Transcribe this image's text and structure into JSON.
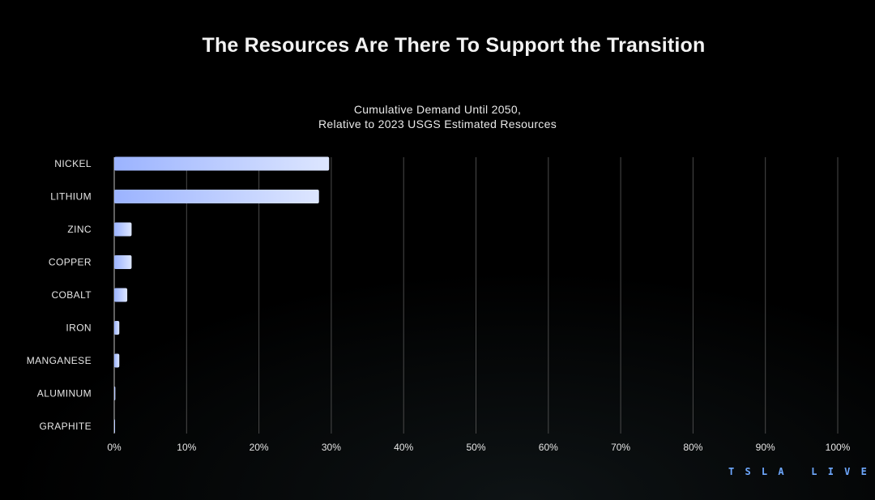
{
  "header": {
    "title": "The Resources Are There To Support the Transition"
  },
  "chart_data": {
    "type": "bar",
    "orientation": "horizontal",
    "title": "Cumulative Demand Until 2050,",
    "subtitle": "Relative to 2023 USGS Estimated Resources",
    "categories": [
      "NICKEL",
      "LITHIUM",
      "ZINC",
      "COPPER",
      "COBALT",
      "IRON",
      "MANGANESE",
      "ALUMINUM",
      "GRAPHITE"
    ],
    "values": [
      29.7,
      28.3,
      2.4,
      2.4,
      1.8,
      0.7,
      0.7,
      0.15,
      0.1
    ],
    "unit": "%",
    "xlim": [
      0,
      100
    ],
    "xticks": [
      "0%",
      "10%",
      "20%",
      "30%",
      "40%",
      "50%",
      "60%",
      "70%",
      "80%",
      "90%",
      "100%"
    ],
    "xlabel": "",
    "ylabel": "",
    "grid": true,
    "colors": {
      "bar_start": "#9bb3ff",
      "bar_end": "#dde6ff",
      "grid": "#4a4a4a",
      "axis": "#bfbfbf"
    }
  },
  "branding": {
    "logo_text": "T S L A   L I V E",
    "logo_color": "#6ea8ff"
  }
}
